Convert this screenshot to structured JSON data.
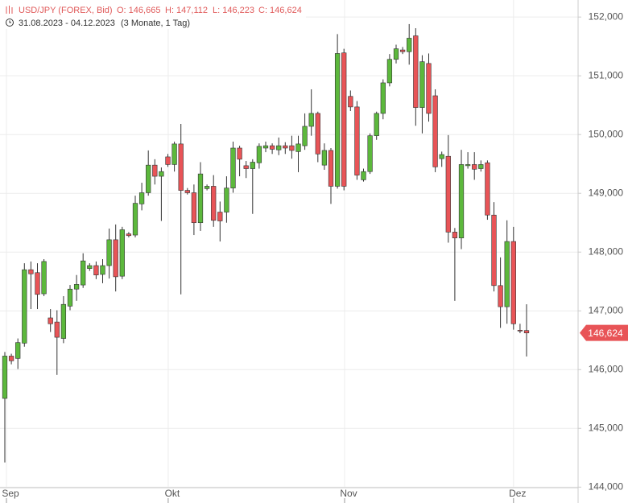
{
  "chart_data": {
    "type": "candlestick",
    "title": "USD/JPY (FOREX, Bid)",
    "ohlc_labels": [
      "O: 146,665",
      "H: 147,112",
      "L: 146,223",
      "C: 146,624"
    ],
    "date_range": "31.08.2023 - 04.12.2023",
    "period": "(3 Monate, 1 Tag)",
    "up_color": "#5cb83c",
    "down_color": "#e85457",
    "x": [
      0,
      1,
      2,
      3,
      4,
      5,
      6,
      7,
      8,
      9,
      10,
      11,
      12,
      13,
      14,
      15,
      16,
      17,
      18,
      19,
      20,
      21,
      22,
      23,
      24,
      25,
      26,
      27,
      28,
      29,
      30,
      31,
      32,
      33,
      34,
      35,
      36,
      37,
      38,
      39,
      40,
      41,
      42,
      43,
      44,
      45,
      46,
      47,
      48,
      49,
      50,
      51,
      52,
      53,
      54,
      55,
      56,
      57,
      58,
      59,
      60,
      61,
      62,
      63,
      64,
      65,
      66,
      67,
      68,
      69,
      70,
      71,
      72,
      73,
      74,
      75,
      76,
      77,
      78,
      79,
      80
    ],
    "open": [
      145.51,
      146.23,
      146.19,
      146.45,
      147.7,
      147.65,
      147.29,
      146.88,
      146.81,
      146.53,
      147.08,
      147.37,
      147.44,
      147.72,
      147.77,
      147.62,
      147.77,
      148.21,
      147.59,
      148.31,
      148.29,
      148.82,
      149.01,
      149.48,
      149.29,
      149.62,
      149.49,
      149.84,
      149.05,
      149.01,
      148.5,
      149.08,
      149.12,
      148.68,
      148.68,
      149.09,
      149.77,
      149.47,
      149.42,
      149.52,
      149.77,
      149.81,
      149.74,
      149.81,
      149.81,
      149.71,
      149.81,
      150.14,
      150.36,
      149.48,
      149.73,
      149.12,
      151.39,
      150.65,
      150.47,
      149.23,
      149.37,
      149.98,
      150.36,
      150.88,
      151.28,
      151.44,
      151.41,
      151.68,
      150.46,
      151.21,
      150.66,
      149.59,
      149.63,
      148.34,
      148.24,
      149.47,
      149.49,
      149.42,
      149.52,
      148.63,
      147.43,
      147.07,
      148.18,
      146.67,
      146.665
    ],
    "high": [
      146.3,
      146.27,
      146.53,
      147.81,
      147.84,
      147.81,
      147.88,
      147.03,
      147.01,
      147.25,
      147.44,
      147.61,
      147.98,
      147.81,
      147.84,
      147.88,
      148.4,
      148.47,
      148.43,
      148.34,
      148.96,
      149.18,
      149.73,
      149.58,
      149.44,
      149.67,
      149.88,
      150.18,
      149.09,
      149.15,
      149.53,
      149.15,
      149.31,
      148.86,
      149.29,
      149.88,
      149.81,
      149.55,
      149.58,
      149.85,
      149.88,
      149.85,
      149.95,
      149.87,
      149.98,
      149.98,
      150.36,
      150.77,
      150.39,
      149.85,
      149.77,
      151.71,
      151.46,
      150.75,
      150.57,
      149.42,
      150.02,
      150.39,
      150.94,
      151.37,
      151.53,
      151.49,
      151.88,
      151.81,
      151.35,
      151.38,
      150.77,
      149.71,
      149.99,
      148.41,
      149.74,
      149.7,
      149.7,
      149.56,
      149.56,
      148.85,
      147.91,
      148.54,
      148.43,
      146.78,
      147.112
    ],
    "low": [
      144.42,
      146.09,
      146.01,
      146.39,
      147.03,
      147.03,
      147.25,
      146.64,
      145.91,
      146.45,
      147.01,
      147.17,
      147.39,
      147.68,
      147.54,
      147.47,
      147.55,
      147.33,
      147.54,
      148.25,
      148.25,
      148.71,
      148.96,
      149.15,
      148.53,
      149.45,
      149.37,
      147.28,
      148.98,
      148.29,
      148.36,
      149.05,
      148.43,
      148.18,
      148.5,
      149.01,
      149.29,
      149.26,
      148.65,
      149.42,
      149.7,
      149.67,
      149.65,
      149.67,
      149.59,
      149.36,
      149.74,
      149.98,
      149.53,
      149.4,
      148.82,
      149.08,
      149.05,
      150.4,
      149.23,
      149.2,
      149.33,
      149.91,
      150.26,
      150.82,
      151.21,
      151.37,
      151.19,
      150.15,
      150.02,
      150.22,
      149.36,
      149.45,
      148.16,
      147.17,
      148.05,
      149.42,
      149.23,
      149.37,
      148.55,
      147.33,
      146.71,
      146.78,
      146.68,
      146.62,
      146.223
    ],
    "close": [
      146.23,
      146.15,
      146.46,
      147.7,
      147.63,
      147.28,
      147.84,
      146.78,
      146.55,
      147.11,
      147.37,
      147.45,
      147.85,
      147.77,
      147.61,
      147.77,
      148.21,
      147.58,
      148.38,
      148.28,
      148.83,
      149.01,
      149.48,
      149.29,
      149.37,
      149.49,
      149.84,
      149.05,
      149.01,
      148.5,
      149.33,
      149.12,
      148.54,
      148.53,
      149.09,
      149.77,
      149.58,
      149.42,
      149.53,
      149.8,
      149.81,
      149.75,
      149.81,
      149.77,
      149.73,
      149.84,
      150.14,
      150.36,
      149.67,
      149.73,
      149.12,
      151.38,
      149.12,
      150.47,
      149.31,
      149.37,
      149.98,
      150.36,
      150.88,
      151.28,
      151.46,
      151.41,
      151.64,
      150.46,
      151.24,
      150.36,
      149.45,
      149.66,
      148.34,
      148.24,
      149.49,
      149.49,
      149.41,
      149.49,
      148.63,
      147.43,
      147.07,
      148.18,
      146.78,
      146.66,
      146.624
    ],
    "last_price": {
      "value": 146.624,
      "label": "146,624"
    },
    "xlim": [
      -0.74,
      87.9
    ],
    "xticks": [
      {
        "value": 0.25,
        "label": "Sep"
      },
      {
        "value": 25.05,
        "label": "Okt"
      },
      {
        "value": 52.1,
        "label": "Nov"
      },
      {
        "value": 78,
        "label": "Dez"
      }
    ],
    "ylim": [
      143.99,
      152.29
    ],
    "yticks": [
      {
        "value": 144,
        "label": "144,000"
      },
      {
        "value": 145,
        "label": "145,000"
      },
      {
        "value": 146,
        "label": "146,000"
      },
      {
        "value": 147,
        "label": "147,000"
      },
      {
        "value": 148,
        "label": "148,000"
      },
      {
        "value": 149,
        "label": "149,000"
      },
      {
        "value": 150,
        "label": "150,000"
      },
      {
        "value": 151,
        "label": "151,000"
      },
      {
        "value": 152,
        "label": "152,000"
      }
    ],
    "grid": true
  }
}
